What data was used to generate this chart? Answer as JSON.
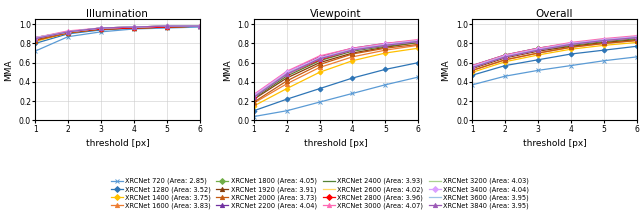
{
  "series": [
    {
      "name": "XRCNet 720",
      "area": 2.85,
      "color": "#5b9bd5",
      "marker": "x",
      "illum": [
        0.72,
        0.87,
        0.92,
        0.95,
        0.96,
        0.97
      ],
      "view": [
        0.04,
        0.1,
        0.19,
        0.28,
        0.37,
        0.45
      ],
      "overall": [
        0.37,
        0.46,
        0.52,
        0.57,
        0.62,
        0.66
      ]
    },
    {
      "name": "XRCNet 1280",
      "area": 3.52,
      "color": "#2e75b6",
      "marker": "D",
      "illum": [
        0.8,
        0.9,
        0.94,
        0.96,
        0.97,
        0.98
      ],
      "view": [
        0.1,
        0.22,
        0.33,
        0.44,
        0.53,
        0.6
      ],
      "overall": [
        0.47,
        0.57,
        0.63,
        0.69,
        0.73,
        0.77
      ]
    },
    {
      "name": "XRCNet 1400",
      "area": 3.75,
      "color": "#ffc000",
      "marker": "D",
      "illum": [
        0.82,
        0.91,
        0.95,
        0.96,
        0.97,
        0.98
      ],
      "view": [
        0.15,
        0.33,
        0.5,
        0.62,
        0.7,
        0.75
      ],
      "overall": [
        0.5,
        0.61,
        0.68,
        0.74,
        0.78,
        0.81
      ]
    },
    {
      "name": "XRCNet 1600",
      "area": 3.83,
      "color": "#ed7d31",
      "marker": "^",
      "illum": [
        0.83,
        0.91,
        0.95,
        0.96,
        0.97,
        0.98
      ],
      "view": [
        0.18,
        0.38,
        0.55,
        0.66,
        0.73,
        0.78
      ],
      "overall": [
        0.52,
        0.63,
        0.7,
        0.76,
        0.8,
        0.83
      ]
    },
    {
      "name": "XRCNet 1800",
      "area": 4.05,
      "color": "#70ad47",
      "marker": "D",
      "illum": [
        0.86,
        0.92,
        0.96,
        0.97,
        0.98,
        0.98
      ],
      "view": [
        0.26,
        0.5,
        0.65,
        0.74,
        0.79,
        0.83
      ],
      "overall": [
        0.57,
        0.68,
        0.75,
        0.8,
        0.84,
        0.87
      ]
    },
    {
      "name": "XRCNet 1920",
      "area": 3.91,
      "color": "#843c0c",
      "marker": "^",
      "illum": [
        0.84,
        0.91,
        0.95,
        0.96,
        0.97,
        0.98
      ],
      "view": [
        0.22,
        0.44,
        0.6,
        0.7,
        0.76,
        0.81
      ],
      "overall": [
        0.54,
        0.65,
        0.72,
        0.77,
        0.81,
        0.84
      ]
    },
    {
      "name": "XRCNet 2000",
      "area": 3.73,
      "color": "#c55a11",
      "marker": "^",
      "illum": [
        0.83,
        0.91,
        0.95,
        0.96,
        0.97,
        0.98
      ],
      "view": [
        0.19,
        0.41,
        0.58,
        0.69,
        0.75,
        0.79
      ],
      "overall": [
        0.52,
        0.63,
        0.7,
        0.76,
        0.8,
        0.83
      ]
    },
    {
      "name": "XRCNet 2200",
      "area": 4.04,
      "color": "#7030a0",
      "marker": "^",
      "illum": [
        0.86,
        0.92,
        0.96,
        0.97,
        0.98,
        0.98
      ],
      "view": [
        0.26,
        0.5,
        0.66,
        0.75,
        0.8,
        0.83
      ],
      "overall": [
        0.57,
        0.68,
        0.75,
        0.8,
        0.84,
        0.87
      ]
    },
    {
      "name": "XRCNet 2400",
      "area": 3.93,
      "color": "#548235",
      "marker": "-",
      "illum": [
        0.85,
        0.92,
        0.95,
        0.96,
        0.97,
        0.98
      ],
      "view": [
        0.23,
        0.46,
        0.62,
        0.72,
        0.77,
        0.81
      ],
      "overall": [
        0.55,
        0.66,
        0.73,
        0.78,
        0.82,
        0.85
      ]
    },
    {
      "name": "XRCNet 2600",
      "area": 4.02,
      "color": "#ffd966",
      "marker": "-",
      "illum": [
        0.86,
        0.92,
        0.96,
        0.97,
        0.98,
        0.98
      ],
      "view": [
        0.25,
        0.49,
        0.65,
        0.74,
        0.79,
        0.82
      ],
      "overall": [
        0.56,
        0.67,
        0.74,
        0.79,
        0.83,
        0.86
      ]
    },
    {
      "name": "XRCNet 2800",
      "area": 3.96,
      "color": "#ff0000",
      "marker": "D",
      "illum": [
        0.85,
        0.92,
        0.95,
        0.96,
        0.97,
        0.98
      ],
      "view": [
        0.24,
        0.48,
        0.63,
        0.73,
        0.78,
        0.82
      ],
      "overall": [
        0.55,
        0.66,
        0.73,
        0.79,
        0.83,
        0.86
      ]
    },
    {
      "name": "XRCNet 3000",
      "area": 4.07,
      "color": "#ff69b4",
      "marker": "^",
      "illum": [
        0.86,
        0.93,
        0.96,
        0.97,
        0.98,
        0.98
      ],
      "view": [
        0.27,
        0.51,
        0.67,
        0.75,
        0.8,
        0.84
      ],
      "overall": [
        0.57,
        0.68,
        0.75,
        0.81,
        0.85,
        0.88
      ]
    },
    {
      "name": "XRCNet 3200",
      "area": 4.03,
      "color": "#a9d18e",
      "marker": "-",
      "illum": [
        0.86,
        0.92,
        0.96,
        0.97,
        0.98,
        0.98
      ],
      "view": [
        0.25,
        0.49,
        0.65,
        0.74,
        0.79,
        0.83
      ],
      "overall": [
        0.56,
        0.67,
        0.74,
        0.8,
        0.84,
        0.87
      ]
    },
    {
      "name": "XRCNet 3400",
      "area": 4.04,
      "color": "#da9fff",
      "marker": "D",
      "illum": [
        0.86,
        0.92,
        0.96,
        0.97,
        0.98,
        0.98
      ],
      "view": [
        0.26,
        0.5,
        0.65,
        0.74,
        0.79,
        0.83
      ],
      "overall": [
        0.56,
        0.67,
        0.74,
        0.8,
        0.84,
        0.87
      ]
    },
    {
      "name": "XRCNet 3600",
      "area": 3.95,
      "color": "#9dc3e6",
      "marker": "-",
      "illum": [
        0.85,
        0.92,
        0.96,
        0.97,
        0.98,
        0.98
      ],
      "view": [
        0.24,
        0.48,
        0.64,
        0.73,
        0.78,
        0.82
      ],
      "overall": [
        0.55,
        0.66,
        0.73,
        0.79,
        0.83,
        0.86
      ]
    },
    {
      "name": "XRCNet 3840",
      "area": 3.95,
      "color": "#9b59b6",
      "marker": "^",
      "illum": [
        0.85,
        0.92,
        0.96,
        0.97,
        0.98,
        0.98
      ],
      "view": [
        0.24,
        0.48,
        0.64,
        0.73,
        0.78,
        0.82
      ],
      "overall": [
        0.55,
        0.66,
        0.73,
        0.79,
        0.83,
        0.86
      ]
    }
  ],
  "x": [
    1,
    2,
    3,
    4,
    5,
    6
  ],
  "titles": [
    "Illumination",
    "Viewpoint",
    "Overall"
  ],
  "xlabel": "threshold [px]",
  "ylabel": "MMA",
  "ylim": [
    0.0,
    1.05
  ],
  "xlim": [
    1,
    6
  ],
  "yticks": [
    0.0,
    0.2,
    0.4,
    0.6,
    0.8,
    1.0
  ],
  "xticks": [
    1,
    2,
    3,
    4,
    5,
    6
  ]
}
